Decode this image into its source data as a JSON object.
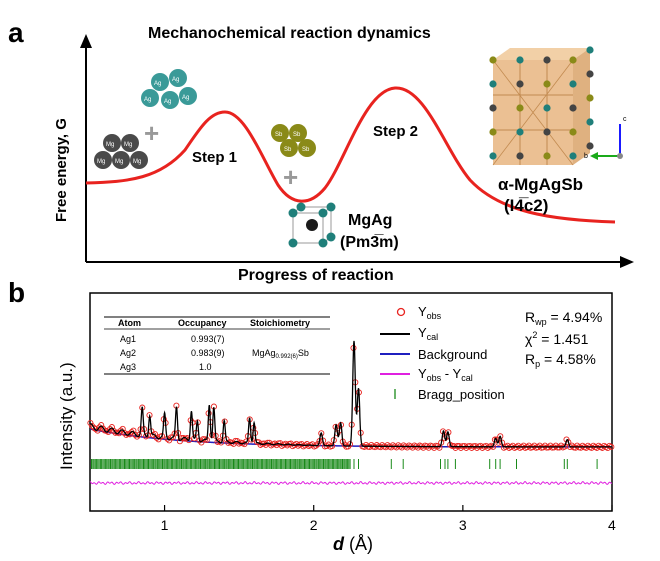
{
  "panel_a": {
    "label": "a",
    "title": "Mechanochemical reaction dynamics",
    "ylabel": "Free energy, G",
    "xlabel": "Progress of reaction",
    "step1": "Step 1",
    "step2": "Step 2",
    "mgag_name": "MgAg",
    "mgag_space_group": "(Pm3̅m)",
    "product_name": "α-MgAgSb",
    "product_space_group": "(I4̅c2)",
    "atom_ag": "Ag",
    "atom_mg": "Mg",
    "atom_sb": "Sb",
    "axis_c": "c",
    "axis_b": "b"
  },
  "panel_b": {
    "label": "b",
    "ylabel": "Intensity (a.u.)",
    "xlabel_symbol": "d",
    "xlabel_unit": " (Å)",
    "ticks": [
      "1",
      "2",
      "3",
      "4"
    ],
    "legend": {
      "yobs_base": "Y",
      "yobs_sub": "obs",
      "ycal_base": "Y",
      "ycal_sub": "cal",
      "background": "Background",
      "diff_a": "Y",
      "diff_a_sub": "obs",
      "diff_mid": " - Y",
      "diff_b_sub": "cal",
      "bragg": "Bragg_position"
    },
    "stats": {
      "rwp_base": "R",
      "rwp_sub": "wp",
      "rwp_value": " = 4.94%",
      "chi_base": "χ",
      "chi_sup": "2",
      "chi_value": " = 1.451",
      "rp_base": "R",
      "rp_sub": "p",
      "rp_value": " = 4.58%"
    },
    "table": {
      "headers": [
        "Atom",
        "Occupancy",
        "Stoichiometry"
      ],
      "rows": [
        {
          "atom": "Ag1",
          "occupancy": "0.993(7)"
        },
        {
          "atom": "Ag2",
          "occupancy": "0.983(9)"
        },
        {
          "atom": "Ag3",
          "occupancy": "1.0"
        }
      ],
      "stoich_base": "MgAg",
      "stoich_sub": "0.992(6)",
      "stoich_tail": "Sb"
    }
  },
  "chart_data": [
    {
      "type": "line",
      "title": "Mechanochemical reaction dynamics",
      "xlabel": "Progress of reaction",
      "ylabel": "Free energy, G",
      "series": [
        {
          "name": "energy profile",
          "color": "#e8231f"
        }
      ],
      "annotations": [
        "Step 1",
        "Step 2",
        "MgAg (Pm3̅m)",
        "α-MgAgSb (I4̅c2)"
      ]
    },
    {
      "type": "line",
      "xlabel": "d (Å)",
      "ylabel": "Intensity (a.u.)",
      "xlim": [
        0.5,
        4.0
      ],
      "xticks": [
        1,
        2,
        3,
        4
      ],
      "peaks_d": [
        0.85,
        0.9,
        1.0,
        1.08,
        1.18,
        1.22,
        1.3,
        1.33,
        1.4,
        1.57,
        1.6,
        2.05,
        2.15,
        2.18,
        2.27,
        2.3,
        2.87,
        2.9,
        3.22,
        3.25,
        3.7
      ],
      "peak_heights": [
        0.25,
        0.2,
        0.22,
        0.3,
        0.28,
        0.18,
        0.35,
        0.32,
        0.2,
        0.24,
        0.2,
        0.12,
        0.2,
        0.22,
        1.0,
        0.55,
        0.15,
        0.14,
        0.08,
        0.1,
        0.07
      ],
      "series": [
        {
          "name": "Y_obs",
          "color": "#e8231f"
        },
        {
          "name": "Y_cal",
          "color": "#000000"
        },
        {
          "name": "Background",
          "color": "#1f1fbf"
        },
        {
          "name": "Y_obs - Y_cal",
          "color": "#e020e0"
        },
        {
          "name": "Bragg_position",
          "color": "#1a8a1a"
        }
      ]
    }
  ]
}
